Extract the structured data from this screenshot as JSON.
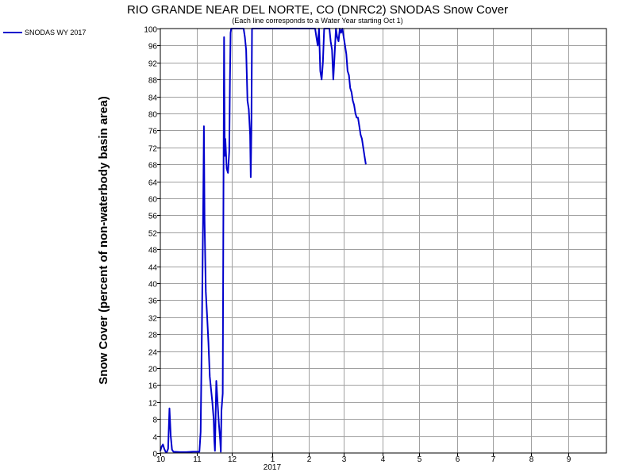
{
  "chart_data": {
    "type": "line",
    "title": "RIO GRANDE NEAR DEL NORTE, CO (DNRC2) SNODAS Snow Cover",
    "subtitle": "(Each line corresponds to a Water Year starting Oct 1)",
    "ylabel": "Snow Cover (percent of non-waterbody basin area)",
    "xlabel": "",
    "ylim": [
      0,
      100
    ],
    "xlim_days": [
      0,
      343
    ],
    "y_ticks": [
      0,
      4,
      8,
      12,
      16,
      20,
      24,
      28,
      32,
      36,
      40,
      44,
      48,
      52,
      56,
      60,
      64,
      68,
      72,
      76,
      80,
      84,
      88,
      92,
      96,
      100
    ],
    "x_ticks": [
      {
        "day": 0,
        "label": "10"
      },
      {
        "day": 28,
        "label": "11"
      },
      {
        "day": 55,
        "label": "12"
      },
      {
        "day": 86,
        "label": "1"
      },
      {
        "day": 114,
        "label": "2"
      },
      {
        "day": 141,
        "label": "3"
      },
      {
        "day": 171,
        "label": "4"
      },
      {
        "day": 199,
        "label": "5"
      },
      {
        "day": 228,
        "label": "6"
      },
      {
        "day": 256,
        "label": "7"
      },
      {
        "day": 285,
        "label": "8"
      },
      {
        "day": 314,
        "label": "9"
      }
    ],
    "year_label": {
      "day": 86,
      "label": "2017"
    },
    "grid": true,
    "legend_position": "top-left",
    "series": [
      {
        "name": "SNODAS WY 2017",
        "color": "#0000cc",
        "points": [
          [
            0,
            0.5
          ],
          [
            1,
            1.5
          ],
          [
            2,
            2
          ],
          [
            3,
            1
          ],
          [
            4,
            0.3
          ],
          [
            5,
            0.2
          ],
          [
            6,
            1
          ],
          [
            7,
            10.5
          ],
          [
            8,
            4
          ],
          [
            9,
            0.8
          ],
          [
            10,
            0.3
          ],
          [
            15,
            0.2
          ],
          [
            20,
            0.2
          ],
          [
            25,
            0.3
          ],
          [
            30,
            0.3
          ],
          [
            31,
            5
          ],
          [
            32,
            30
          ],
          [
            33,
            60
          ],
          [
            33.5,
            77
          ],
          [
            34,
            55
          ],
          [
            35,
            38
          ],
          [
            36,
            32
          ],
          [
            37,
            26
          ],
          [
            38,
            18
          ],
          [
            39,
            15
          ],
          [
            40,
            12
          ],
          [
            41,
            8
          ],
          [
            41.5,
            3
          ],
          [
            42,
            0.5
          ],
          [
            43,
            17
          ],
          [
            44,
            12
          ],
          [
            45,
            7
          ],
          [
            46,
            3
          ],
          [
            46.5,
            0.3
          ],
          [
            47,
            10
          ],
          [
            48,
            14
          ],
          [
            48.5,
            60
          ],
          [
            49,
            98
          ],
          [
            49.5,
            70
          ],
          [
            50,
            74
          ],
          [
            51,
            67
          ],
          [
            52,
            66
          ],
          [
            53,
            71
          ],
          [
            53.5,
            88
          ],
          [
            54,
            99
          ],
          [
            54.5,
            100
          ],
          [
            60,
            100
          ],
          [
            64,
            100
          ],
          [
            65,
            98
          ],
          [
            66,
            95
          ],
          [
            67,
            83
          ],
          [
            68,
            81
          ],
          [
            69,
            75
          ],
          [
            69.5,
            65
          ],
          [
            70,
            76
          ],
          [
            70.5,
            100
          ],
          [
            82,
            100
          ],
          [
            95,
            100
          ],
          [
            119,
            100
          ],
          [
            120,
            98
          ],
          [
            121,
            96
          ],
          [
            122,
            100
          ],
          [
            123,
            90
          ],
          [
            124,
            88
          ],
          [
            125,
            92
          ],
          [
            126,
            100
          ],
          [
            130,
            100
          ],
          [
            131,
            97
          ],
          [
            132,
            95
          ],
          [
            133,
            88
          ],
          [
            134,
            94
          ],
          [
            135,
            100
          ],
          [
            136,
            98
          ],
          [
            137,
            97
          ],
          [
            138,
            100
          ],
          [
            139,
            99
          ],
          [
            140,
            100
          ],
          [
            141,
            98
          ],
          [
            142,
            96
          ],
          [
            143,
            94
          ],
          [
            144,
            90
          ],
          [
            145,
            89
          ],
          [
            146,
            86
          ],
          [
            147,
            85
          ],
          [
            148,
            83
          ],
          [
            149,
            82
          ],
          [
            150,
            80
          ],
          [
            151,
            79
          ],
          [
            152,
            79
          ],
          [
            153,
            77
          ],
          [
            154,
            75
          ],
          [
            155,
            74
          ],
          [
            156,
            72
          ],
          [
            157,
            70
          ],
          [
            158,
            68
          ]
        ]
      }
    ]
  }
}
